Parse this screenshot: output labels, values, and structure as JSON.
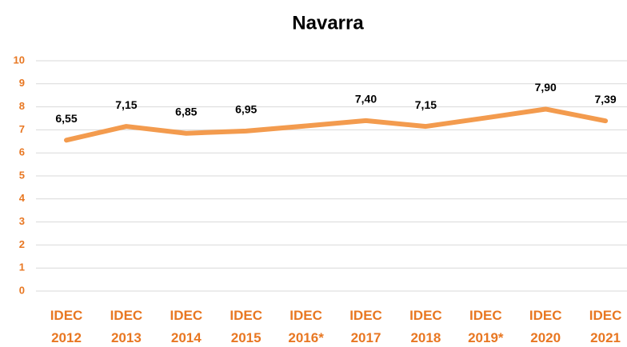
{
  "chart_data": {
    "type": "line",
    "title": "Navarra",
    "categories": [
      "IDEC 2012",
      "IDEC 2013",
      "IDEC 2014",
      "IDEC 2015",
      "IDEC 2016*",
      "IDEC 2017",
      "IDEC 2018",
      "IDEC 2019*",
      "IDEC 2020",
      "IDEC 2021"
    ],
    "series": [
      {
        "name": "Navarra",
        "color": "#f39b4e",
        "values": [
          6.55,
          7.15,
          6.85,
          6.95,
          7.17,
          7.4,
          7.15,
          7.52,
          7.9,
          7.39
        ],
        "value_labels": [
          "6,55",
          "7,15",
          "6,85",
          "6,95",
          null,
          "7,40",
          "7,15",
          null,
          "7,90",
          "7,39"
        ]
      }
    ],
    "ylim": [
      0,
      10
    ],
    "yticks": [
      0,
      1,
      2,
      3,
      4,
      5,
      6,
      7,
      8,
      9,
      10
    ],
    "grid": true
  }
}
